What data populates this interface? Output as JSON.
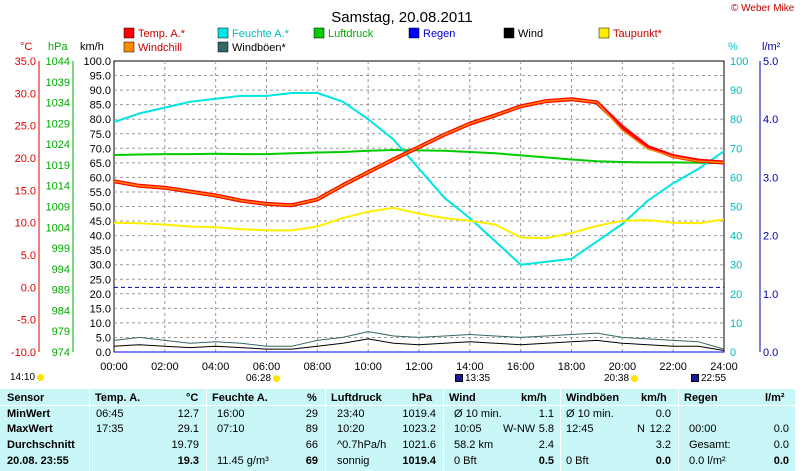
{
  "title": "Samstag, 20.08.2011",
  "credit": "© Weber Mike",
  "legend": [
    {
      "label": "Temp. A.*",
      "color": "#ff0000"
    },
    {
      "label": "Feuchte A.*",
      "color": "#00e5e5"
    },
    {
      "label": "Luftdruck",
      "color": "#00cc00"
    },
    {
      "label": "Regen",
      "color": "#0000ff"
    },
    {
      "label": "Wind",
      "color": "#000000"
    },
    {
      "label": "Taupunkt*",
      "color": "#ffee00"
    },
    {
      "label": "Windchill",
      "color": "#ff8800"
    },
    {
      "label": "Windböen*",
      "color": "#336666"
    }
  ],
  "axis_units": {
    "temp": "°C",
    "pressure": "hPa",
    "wind": "km/h",
    "humidity": "%",
    "rain": "l/m²"
  },
  "axis_ticks": {
    "temp": [
      "35.0",
      "30.0",
      "25.0",
      "20.0",
      "15.0",
      "10.0",
      "5.0",
      "0.0",
      "-5.0",
      "-10.0"
    ],
    "pressure": [
      "1044",
      "1039",
      "1034",
      "1029",
      "1024",
      "1019",
      "1014",
      "1009",
      "1004",
      "999",
      "994",
      "989",
      "984",
      "979",
      "974"
    ],
    "wind": [
      "100.0",
      "95.0",
      "90.0",
      "85.0",
      "80.0",
      "75.0",
      "70.0",
      "65.0",
      "60.0",
      "55.0",
      "50.0",
      "45.0",
      "40.0",
      "35.0",
      "30.0",
      "25.0",
      "20.0",
      "15.0",
      "10.0",
      "5.0",
      "0.0"
    ],
    "humidity": [
      "100",
      "90",
      "80",
      "70",
      "60",
      "50",
      "40",
      "30",
      "20",
      "10",
      "0"
    ],
    "rain": [
      "5.0",
      "4.0",
      "3.0",
      "2.0",
      "1.0",
      "0.0"
    ],
    "time": [
      "00:00",
      "02:00",
      "04:00",
      "06:00",
      "08:00",
      "10:00",
      "12:00",
      "14:00",
      "16:00",
      "18:00",
      "20:00",
      "22:00",
      "24:00"
    ]
  },
  "sun_moon": {
    "moonset": "14:10",
    "sunrise": "06:28",
    "moonrise_1": "13:35",
    "sunset": "20:38",
    "moonrise_2": "22:55"
  },
  "chart_data": {
    "type": "line",
    "x": [
      "00:00",
      "01:00",
      "02:00",
      "03:00",
      "04:00",
      "05:00",
      "06:00",
      "07:00",
      "08:00",
      "09:00",
      "10:00",
      "11:00",
      "12:00",
      "13:00",
      "14:00",
      "15:00",
      "16:00",
      "17:00",
      "18:00",
      "19:00",
      "20:00",
      "21:00",
      "22:00",
      "23:00",
      "24:00"
    ],
    "series": [
      {
        "name": "Temp. A.*",
        "axis": "temp",
        "values": [
          16.4,
          15.7,
          15.4,
          14.8,
          14.2,
          13.4,
          12.9,
          12.7,
          13.6,
          15.8,
          17.8,
          19.8,
          21.7,
          23.6,
          25.3,
          26.6,
          28.0,
          28.8,
          29.1,
          28.6,
          24.8,
          21.7,
          20.3,
          19.6,
          19.3
        ]
      },
      {
        "name": "Windchill",
        "axis": "temp",
        "values": [
          16.4,
          15.7,
          15.4,
          14.8,
          14.2,
          13.4,
          12.9,
          12.7,
          13.6,
          15.8,
          17.8,
          19.8,
          21.7,
          23.6,
          25.3,
          26.6,
          28.0,
          28.8,
          29.1,
          28.6,
          24.3,
          21.4,
          20.2,
          19.5,
          19.3
        ]
      },
      {
        "name": "Feuchte A.*",
        "axis": "humidity",
        "values": [
          79,
          82,
          84,
          86,
          87,
          88,
          88,
          89,
          89,
          86,
          80,
          73,
          63,
          53,
          46,
          38,
          30,
          31,
          32,
          38,
          44,
          52,
          58,
          63,
          69
        ]
      },
      {
        "name": "Luftdruck",
        "axis": "pressure",
        "values": [
          1021.4,
          1021.5,
          1021.6,
          1021.6,
          1021.7,
          1021.6,
          1021.6,
          1021.8,
          1022.0,
          1022.1,
          1022.4,
          1022.6,
          1022.5,
          1022.4,
          1022.1,
          1021.8,
          1021.3,
          1020.8,
          1020.3,
          1019.9,
          1019.7,
          1019.6,
          1019.6,
          1019.5,
          1019.4
        ]
      },
      {
        "name": "Taupunkt*",
        "axis": "temp",
        "values": [
          10.0,
          9.9,
          9.7,
          9.4,
          9.3,
          9.0,
          8.8,
          8.8,
          9.4,
          10.7,
          11.7,
          12.3,
          11.4,
          10.7,
          10.3,
          9.7,
          7.7,
          7.6,
          8.4,
          9.5,
          10.3,
          10.4,
          10.0,
          9.9,
          10.5
        ]
      },
      {
        "name": "Wind",
        "axis": "wind",
        "values": [
          2.0,
          2.5,
          2.0,
          1.5,
          2.0,
          1.5,
          1.0,
          1.0,
          2.0,
          3.0,
          4.5,
          3.0,
          2.5,
          3.0,
          3.5,
          3.0,
          2.5,
          3.0,
          3.5,
          4.0,
          3.0,
          2.5,
          2.0,
          2.0,
          0.5
        ]
      },
      {
        "name": "Windböen*",
        "axis": "wind",
        "values": [
          4.0,
          5.0,
          4.0,
          3.0,
          3.5,
          3.0,
          2.0,
          2.0,
          4.0,
          5.0,
          7.0,
          5.5,
          5.0,
          5.5,
          6.0,
          5.5,
          5.0,
          5.5,
          6.0,
          6.5,
          5.0,
          4.5,
          4.0,
          3.5,
          1.0
        ]
      },
      {
        "name": "Regen",
        "axis": "rain",
        "values": [
          0,
          0,
          0,
          0,
          0,
          0,
          0,
          0,
          0,
          0,
          0,
          0,
          0,
          0,
          0,
          0,
          0,
          0,
          0,
          0,
          0,
          0,
          0,
          0,
          0
        ]
      }
    ],
    "ylim": {
      "temp": [
        -10,
        35
      ],
      "pressure": [
        974,
        1044
      ],
      "wind": [
        0,
        100
      ],
      "humidity": [
        0,
        100
      ],
      "rain": [
        0,
        5
      ]
    },
    "grid": true
  },
  "table": {
    "headers": {
      "sensor": "Sensor",
      "temp": "Temp. A.",
      "temp_unit": "°C",
      "hum": "Feuchte A.",
      "hum_unit": "%",
      "press": "Luftdruck",
      "press_unit": "hPa",
      "wind": "Wind",
      "wind_unit": "km/h",
      "gust": "Windböen",
      "gust_unit": "km/h",
      "rain": "Regen",
      "rain_unit": "l/m²"
    },
    "rows": [
      {
        "label": "MinWert",
        "temp_time": "06:45",
        "temp_val": "12.7",
        "hum_time": "16:00",
        "hum_val": "29",
        "press_time": "23:40",
        "press_val": "1019.4",
        "wind_a": "Ø 10 min.",
        "wind_val": "1.1",
        "gust_a": "Ø 10 min.",
        "gust_val": "0.0",
        "rain_a": "",
        "rain_val": ""
      },
      {
        "label": "MaxWert",
        "temp_time": "17:35",
        "temp_val": "29.1",
        "hum_time": "07:10",
        "hum_val": "89",
        "press_time": "10:20",
        "press_val": "1023.2",
        "wind_a": "10:05",
        "wind_b": "W-NW",
        "wind_val": "5.8",
        "gust_a": "12:45",
        "gust_b": "N",
        "gust_val": "12.2",
        "rain_a": "00:00",
        "rain_val": "0.0"
      },
      {
        "label": "Durchschnitt",
        "temp_time": "",
        "temp_val": "19.79",
        "hum_time": "",
        "hum_val": "66",
        "press_time": "^0.7hPa/h",
        "press_val": "1021.6",
        "wind_a": "58.2 km",
        "wind_val": "2.4",
        "gust_a": "",
        "gust_val": "3.2",
        "rain_a": "Gesamt:",
        "rain_val": "0.0"
      },
      {
        "label": "20.08.  23:55",
        "temp_time": "",
        "temp_val": "19.3",
        "hum_time": "11.45 g/m³",
        "hum_val": "69",
        "press_time": "sonnig",
        "press_val": "1019.4",
        "wind_a": "0 Bft",
        "wind_val": "0.5",
        "gust_a": "0 Bft",
        "gust_val": "0.0",
        "rain_a": "0.0 l/m²",
        "rain_val": "0.0"
      }
    ]
  }
}
